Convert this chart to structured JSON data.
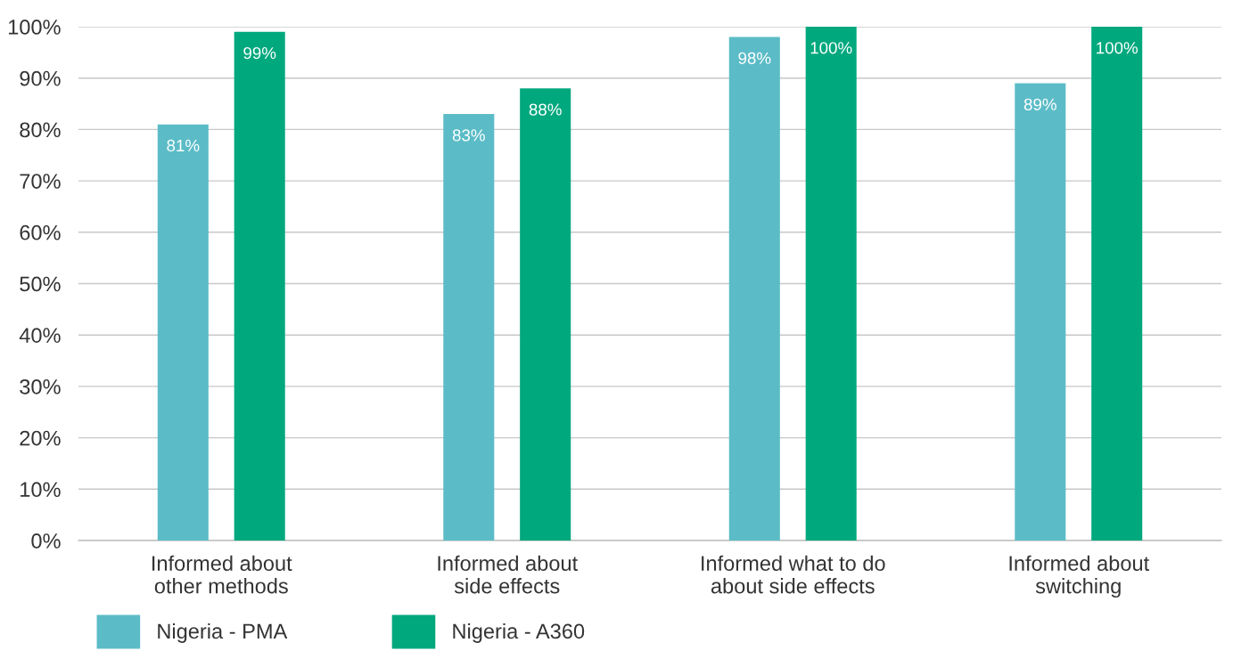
{
  "chart_data": {
    "type": "bar",
    "categories": [
      "Informed about\nother methods",
      "Informed about\nside effects",
      "Informed what to do\nabout side effects",
      "Informed about\nswitching"
    ],
    "series": [
      {
        "name": "Nigeria - PMA",
        "color": "#5bbcc7",
        "values": [
          81,
          83,
          98,
          89
        ],
        "value_labels": [
          "81%",
          "83%",
          "98%",
          "89%"
        ]
      },
      {
        "name": "Nigeria - A360",
        "color": "#00a87e",
        "values": [
          99,
          88,
          100,
          100
        ],
        "value_labels": [
          "99%",
          "88%",
          "100%",
          "100%"
        ]
      }
    ],
    "ylim": [
      0,
      100
    ],
    "yticks": [
      {
        "value": 0,
        "label": "0%"
      },
      {
        "value": 10,
        "label": "10%"
      },
      {
        "value": 20,
        "label": "20%"
      },
      {
        "value": 30,
        "label": "30%"
      },
      {
        "value": 40,
        "label": "40%"
      },
      {
        "value": 50,
        "label": "50%"
      },
      {
        "value": 60,
        "label": "60%"
      },
      {
        "value": 70,
        "label": "70%"
      },
      {
        "value": 80,
        "label": "80%"
      },
      {
        "value": 90,
        "label": "90%"
      },
      {
        "value": 100,
        "label": "100%"
      }
    ],
    "grid": "y",
    "legend": "bottom left"
  }
}
